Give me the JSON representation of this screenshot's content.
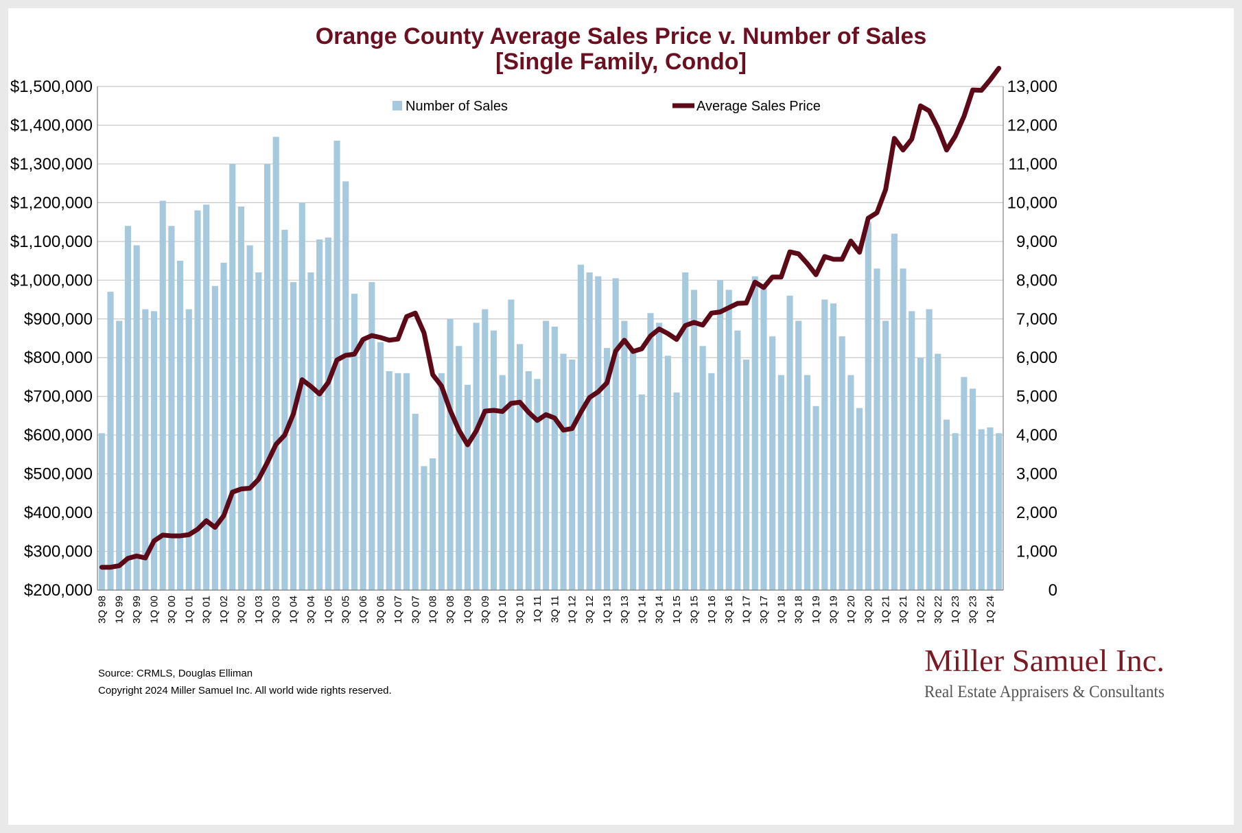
{
  "colors": {
    "title": "#6b1020",
    "bars": "#a7c9de",
    "line": "#5c0a18",
    "grid": "#c8c8c8",
    "logo_main": "#7a1a24",
    "logo_sub": "#555555"
  },
  "chart_data": {
    "type": "bar",
    "title": "Orange County Average Sales Price v. Number of Sales",
    "subtitle": "[Single Family, Condo]",
    "xlabel": "",
    "ylabel": "",
    "y_left_range": [
      200000,
      1500000
    ],
    "y_right_range": [
      0,
      13000
    ],
    "y_left_ticks": [
      "$200,000",
      "$300,000",
      "$400,000",
      "$500,000",
      "$600,000",
      "$700,000",
      "$800,000",
      "$900,000",
      "$1,000,000",
      "$1,100,000",
      "$1,200,000",
      "$1,300,000",
      "$1,400,000",
      "$1,500,000"
    ],
    "y_right_ticks": [
      "0",
      "1,000",
      "2,000",
      "3,000",
      "4,000",
      "5,000",
      "6,000",
      "7,000",
      "8,000",
      "9,000",
      "10,000",
      "11,000",
      "12,000",
      "13,000"
    ],
    "grid": true,
    "legend_position": "top",
    "categories": [
      "3Q 98",
      "4Q 98",
      "1Q 99",
      "2Q 99",
      "3Q 99",
      "4Q 99",
      "1Q 00",
      "2Q 00",
      "3Q 00",
      "4Q 00",
      "1Q 01",
      "2Q 01",
      "3Q 01",
      "4Q 01",
      "1Q 02",
      "2Q 02",
      "3Q 02",
      "4Q 02",
      "1Q 03",
      "2Q 03",
      "3Q 03",
      "4Q 03",
      "1Q 04",
      "2Q 04",
      "3Q 04",
      "4Q 04",
      "1Q 05",
      "2Q 05",
      "3Q 05",
      "4Q 05",
      "1Q 06",
      "2Q 06",
      "3Q 06",
      "4Q 06",
      "1Q 07",
      "2Q 07",
      "3Q 07",
      "4Q 07",
      "1Q 08",
      "2Q 08",
      "3Q 08",
      "4Q 08",
      "1Q 09",
      "2Q 09",
      "3Q 09",
      "4Q 09",
      "1Q 10",
      "2Q 10",
      "3Q 10",
      "4Q 10",
      "1Q 11",
      "2Q 11",
      "3Q 11",
      "4Q 11",
      "1Q 12",
      "2Q 12",
      "3Q 12",
      "4Q 12",
      "1Q 13",
      "2Q 13",
      "3Q 13",
      "4Q 13",
      "1Q 14",
      "2Q 14",
      "3Q 14",
      "4Q 14",
      "1Q 15",
      "2Q 15",
      "3Q 15",
      "4Q 15",
      "1Q 16",
      "2Q 16",
      "3Q 16",
      "4Q 16",
      "1Q 17",
      "2Q 17",
      "3Q 17",
      "4Q 17",
      "1Q 18",
      "2Q 18",
      "3Q 18",
      "4Q 18",
      "1Q 19",
      "2Q 19",
      "3Q 19",
      "4Q 19",
      "1Q 20",
      "2Q 20",
      "3Q 20",
      "4Q 20",
      "1Q 21",
      "2Q 21",
      "3Q 21",
      "4Q 21",
      "1Q 22",
      "2Q 22",
      "3Q 22",
      "4Q 22",
      "1Q 23",
      "2Q 23",
      "3Q 23",
      "4Q 23",
      "1Q 24",
      "2Q 24"
    ],
    "x_tick_labels": [
      "3Q 98",
      "1Q 99",
      "3Q 99",
      "1Q 00",
      "3Q 00",
      "1Q 01",
      "3Q 01",
      "1Q 02",
      "3Q 02",
      "1Q 03",
      "3Q 03",
      "1Q 04",
      "3Q 04",
      "1Q 05",
      "3Q 05",
      "1Q 06",
      "3Q 06",
      "1Q 07",
      "3Q 07",
      "1Q 08",
      "3Q 08",
      "1Q 09",
      "3Q 09",
      "1Q 10",
      "3Q 10",
      "1Q 11",
      "3Q 11",
      "1Q 12",
      "3Q 12",
      "1Q 13",
      "3Q 13",
      "1Q 14",
      "3Q 14",
      "1Q 15",
      "3Q 15",
      "1Q 16",
      "3Q 16",
      "1Q 17",
      "3Q 17",
      "1Q 18",
      "3Q 18",
      "1Q 19",
      "3Q 19",
      "1Q 20",
      "3Q 20",
      "1Q 21",
      "3Q 21",
      "1Q 22",
      "3Q 22",
      "1Q 23",
      "3Q 23",
      "1Q 24"
    ],
    "series": [
      {
        "name": "Number of Sales",
        "type": "bar",
        "axis": "right",
        "values": [
          4050,
          7700,
          6950,
          9400,
          8900,
          7250,
          7200,
          10050,
          9400,
          8500,
          7250,
          9800,
          9950,
          7850,
          8450,
          11000,
          9900,
          8900,
          8200,
          11000,
          11700,
          9300,
          7950,
          10000,
          8200,
          9050,
          9100,
          11600,
          10550,
          7650,
          6500,
          7950,
          6400,
          5650,
          5600,
          5600,
          4550,
          3200,
          3400,
          5600,
          7000,
          6300,
          5300,
          6900,
          7250,
          6700,
          5550,
          7500,
          6350,
          5650,
          5450,
          6950,
          6800,
          6100,
          5950,
          8400,
          8200,
          8100,
          6250,
          8050,
          6950,
          6150,
          5050,
          7150,
          6900,
          6050,
          5100,
          8200,
          7750,
          6300,
          5600,
          8000,
          7750,
          6700,
          5950,
          8100,
          7800,
          6550,
          5550,
          7600,
          6950,
          5550,
          4750,
          7500,
          7400,
          6550,
          5550,
          4700,
          9500,
          8300,
          6950,
          9200,
          8300,
          7200,
          6000,
          7250,
          6100,
          4400,
          4050,
          5500,
          5200,
          4150,
          4200,
          4050
        ],
        "note": ""
      },
      {
        "name": "Average Sales Price",
        "type": "line",
        "axis": "left",
        "values": [
          259000,
          259000,
          263000,
          282000,
          288000,
          283000,
          327000,
          342000,
          340000,
          340000,
          343000,
          357000,
          379000,
          362000,
          392000,
          453000,
          461000,
          463000,
          486000,
          529000,
          576000,
          600000,
          655000,
          743000,
          726000,
          706000,
          736000,
          794000,
          806000,
          809000,
          847000,
          857000,
          852000,
          845000,
          848000,
          906000,
          915000,
          864000,
          756000,
          727000,
          664000,
          613000,
          575000,
          611000,
          662000,
          664000,
          661000,
          682000,
          685000,
          659000,
          638000,
          653000,
          644000,
          613000,
          617000,
          659000,
          697000,
          712000,
          735000,
          817000,
          845000,
          816000,
          823000,
          856000,
          874000,
          862000,
          847000,
          883000,
          891000,
          884000,
          915000,
          918000,
          929000,
          940000,
          941000,
          995000,
          981000,
          1008000,
          1008000,
          1073000,
          1068000,
          1043000,
          1014000,
          1061000,
          1054000,
          1054000,
          1101000,
          1072000,
          1160000,
          1174000,
          1234000,
          1366000,
          1336000,
          1364000,
          1450000,
          1437000,
          1393000,
          1336000,
          1372000,
          1423000,
          1491000,
          1490000,
          1517000,
          1547000
        ]
      }
    ],
    "legend": [
      "Number of Sales",
      "Average Sales Price"
    ]
  },
  "footer": {
    "source": "Source: CRMLS, Douglas Elliman",
    "copyright": "Copyright 2024 Miller Samuel Inc.  All world wide rights reserved."
  },
  "logo": {
    "name": "Miller Samuel Inc.",
    "tagline": "Real Estate Appraisers & Consultants"
  }
}
